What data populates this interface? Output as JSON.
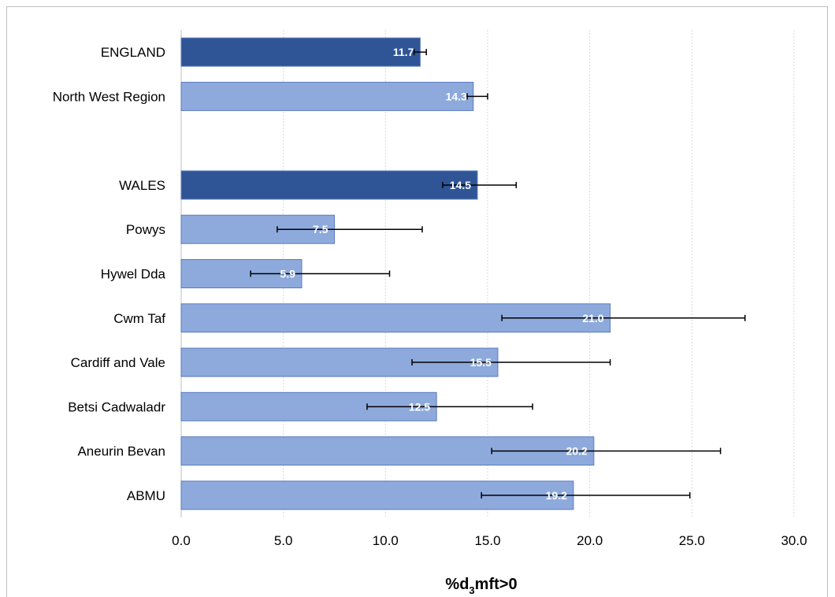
{
  "chart_data": {
    "type": "bar",
    "orientation": "horizontal",
    "categories": [
      "ENGLAND",
      "North West Region",
      "",
      "WALES",
      "Powys",
      "Hywel Dda",
      "Cwm Taf",
      "Cardiff and Vale",
      "Betsi Cadwaladr",
      "Aneurin Bevan",
      "ABMU"
    ],
    "values": [
      11.7,
      14.3,
      null,
      14.5,
      7.5,
      5.9,
      21.0,
      15.5,
      12.5,
      20.2,
      19.2
    ],
    "labels": [
      "11.7",
      "14.3",
      "",
      "14.5",
      "7.5",
      "5.9",
      "21.0",
      "15.5",
      "12.5",
      "20.2",
      "19.2"
    ],
    "error_low": [
      11.4,
      14.0,
      null,
      12.8,
      4.7,
      3.4,
      15.7,
      11.3,
      9.1,
      15.2,
      14.7
    ],
    "error_high": [
      12.0,
      15.0,
      null,
      16.4,
      11.8,
      10.2,
      27.6,
      21.0,
      17.2,
      26.4,
      24.9
    ],
    "bar_types": [
      "national",
      "regional",
      "gap",
      "national",
      "regional",
      "regional",
      "regional",
      "regional",
      "regional",
      "regional",
      "regional"
    ],
    "colors": {
      "national": "#2f5597",
      "regional": "#8eaadc",
      "bar_border": "#5b7bbd",
      "error_bar": "#000000",
      "grid": "#d9d9d9"
    },
    "xlim": [
      0,
      30
    ],
    "xticks": [
      "0.0",
      "5.0",
      "10.0",
      "15.0",
      "20.0",
      "25.0",
      "30.0"
    ],
    "xlabel": {
      "main": "%d",
      "sub": "3",
      "rest": "mft>0"
    },
    "grid": "vertical dashed"
  }
}
